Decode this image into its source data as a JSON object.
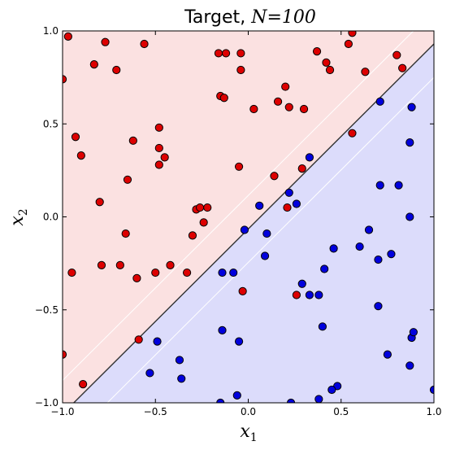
{
  "chart_data": {
    "type": "scatter",
    "title": "Target, N=100",
    "title_text": "Target, ",
    "title_math": "N=100",
    "xlabel": "x",
    "xlabel_sub": "1",
    "ylabel": "x",
    "ylabel_sub": "2",
    "xlim": [
      -1.0,
      1.0
    ],
    "ylim": [
      -1.0,
      1.0
    ],
    "xticks": [
      -1.0,
      -0.5,
      0.0,
      0.5,
      1.0
    ],
    "yticks": [
      -1.0,
      -0.5,
      0.0,
      0.5,
      1.0
    ],
    "xtick_labels": [
      "−1.0",
      "−0.5",
      "0.0",
      "0.5",
      "1.0"
    ],
    "ytick_labels": [
      "−1.0",
      "−0.5",
      "0.0",
      "0.5",
      "1.0"
    ],
    "grid": false,
    "boundary_line": {
      "x": [
        -1.0,
        1.0
      ],
      "y": [
        -1.06,
        0.93
      ]
    },
    "margin_lines": [
      {
        "x": [
          -1.0,
          1.0
        ],
        "y": [
          -0.88,
          1.11
        ]
      },
      {
        "x": [
          -1.0,
          1.0
        ],
        "y": [
          -1.24,
          0.75
        ]
      }
    ],
    "colors": {
      "class_red": "#dd0000",
      "class_blue": "#0000dd",
      "region_red": "#fbe1e1",
      "region_blue": "#dcdcfb",
      "boundary": "#333333",
      "margin": "#ffffff"
    },
    "series": [
      {
        "color": "red",
        "points": [
          [
            -0.97,
            0.97
          ],
          [
            -1.0,
            0.74
          ],
          [
            -0.83,
            0.82
          ],
          [
            -0.77,
            0.94
          ],
          [
            -0.71,
            0.79
          ],
          [
            -0.56,
            0.93
          ],
          [
            -0.93,
            0.43
          ],
          [
            -0.9,
            0.33
          ],
          [
            -0.62,
            0.41
          ],
          [
            -0.48,
            0.48
          ],
          [
            -0.48,
            0.37
          ],
          [
            -0.45,
            0.32
          ],
          [
            -0.48,
            0.28
          ],
          [
            -0.65,
            0.2
          ],
          [
            -0.8,
            0.08
          ],
          [
            -0.16,
            0.88
          ],
          [
            -0.12,
            0.88
          ],
          [
            -0.04,
            0.79
          ],
          [
            -0.04,
            0.88
          ],
          [
            -0.15,
            0.65
          ],
          [
            -0.13,
            0.64
          ],
          [
            -0.05,
            0.27
          ],
          [
            0.03,
            0.58
          ],
          [
            0.16,
            0.62
          ],
          [
            0.2,
            0.7
          ],
          [
            0.22,
            0.59
          ],
          [
            0.29,
            0.26
          ],
          [
            0.3,
            0.58
          ],
          [
            0.37,
            0.89
          ],
          [
            0.42,
            0.83
          ],
          [
            0.44,
            0.79
          ],
          [
            0.54,
            0.93
          ],
          [
            0.56,
            0.99
          ],
          [
            0.63,
            0.78
          ],
          [
            0.8,
            0.87
          ],
          [
            0.83,
            0.8
          ],
          [
            0.56,
            0.45
          ],
          [
            0.14,
            0.22
          ],
          [
            0.21,
            0.05
          ],
          [
            -0.28,
            0.04
          ],
          [
            -0.26,
            0.05
          ],
          [
            -0.22,
            0.05
          ],
          [
            -0.24,
            -0.03
          ],
          [
            -0.3,
            -0.1
          ],
          [
            -0.66,
            -0.09
          ],
          [
            -0.95,
            -0.3
          ],
          [
            -0.79,
            -0.26
          ],
          [
            -0.69,
            -0.26
          ],
          [
            -0.6,
            -0.33
          ],
          [
            -0.5,
            -0.3
          ],
          [
            -0.42,
            -0.26
          ],
          [
            -0.33,
            -0.3
          ],
          [
            -0.03,
            -0.4
          ],
          [
            0.26,
            -0.42
          ],
          [
            -0.59,
            -0.66
          ],
          [
            -1.0,
            -0.74
          ],
          [
            -0.89,
            -0.9
          ]
        ]
      },
      {
        "color": "blue",
        "points": [
          [
            0.33,
            0.32
          ],
          [
            0.22,
            0.13
          ],
          [
            0.06,
            0.06
          ],
          [
            0.26,
            0.07
          ],
          [
            0.1,
            -0.09
          ],
          [
            -0.02,
            -0.07
          ],
          [
            0.09,
            -0.21
          ],
          [
            0.71,
            0.62
          ],
          [
            0.88,
            0.59
          ],
          [
            0.87,
            0.4
          ],
          [
            0.71,
            0.17
          ],
          [
            0.81,
            0.17
          ],
          [
            0.87,
            0.0
          ],
          [
            0.65,
            -0.07
          ],
          [
            0.6,
            -0.16
          ],
          [
            0.46,
            -0.17
          ],
          [
            0.41,
            -0.28
          ],
          [
            0.7,
            -0.23
          ],
          [
            0.77,
            -0.2
          ],
          [
            -0.14,
            -0.3
          ],
          [
            -0.08,
            -0.3
          ],
          [
            0.29,
            -0.36
          ],
          [
            0.33,
            -0.42
          ],
          [
            0.38,
            -0.42
          ],
          [
            0.7,
            -0.48
          ],
          [
            0.4,
            -0.59
          ],
          [
            -0.14,
            -0.61
          ],
          [
            -0.05,
            -0.67
          ],
          [
            -0.49,
            -0.67
          ],
          [
            -0.37,
            -0.77
          ],
          [
            -0.53,
            -0.84
          ],
          [
            -0.36,
            -0.87
          ],
          [
            0.48,
            -0.91
          ],
          [
            0.45,
            -0.93
          ],
          [
            0.88,
            -0.65
          ],
          [
            0.89,
            -0.62
          ],
          [
            0.75,
            -0.74
          ],
          [
            0.87,
            -0.8
          ],
          [
            -0.06,
            -0.96
          ],
          [
            -0.15,
            -1.0
          ],
          [
            0.38,
            -0.98
          ],
          [
            0.23,
            -1.0
          ],
          [
            1.0,
            -0.93
          ]
        ]
      }
    ]
  }
}
